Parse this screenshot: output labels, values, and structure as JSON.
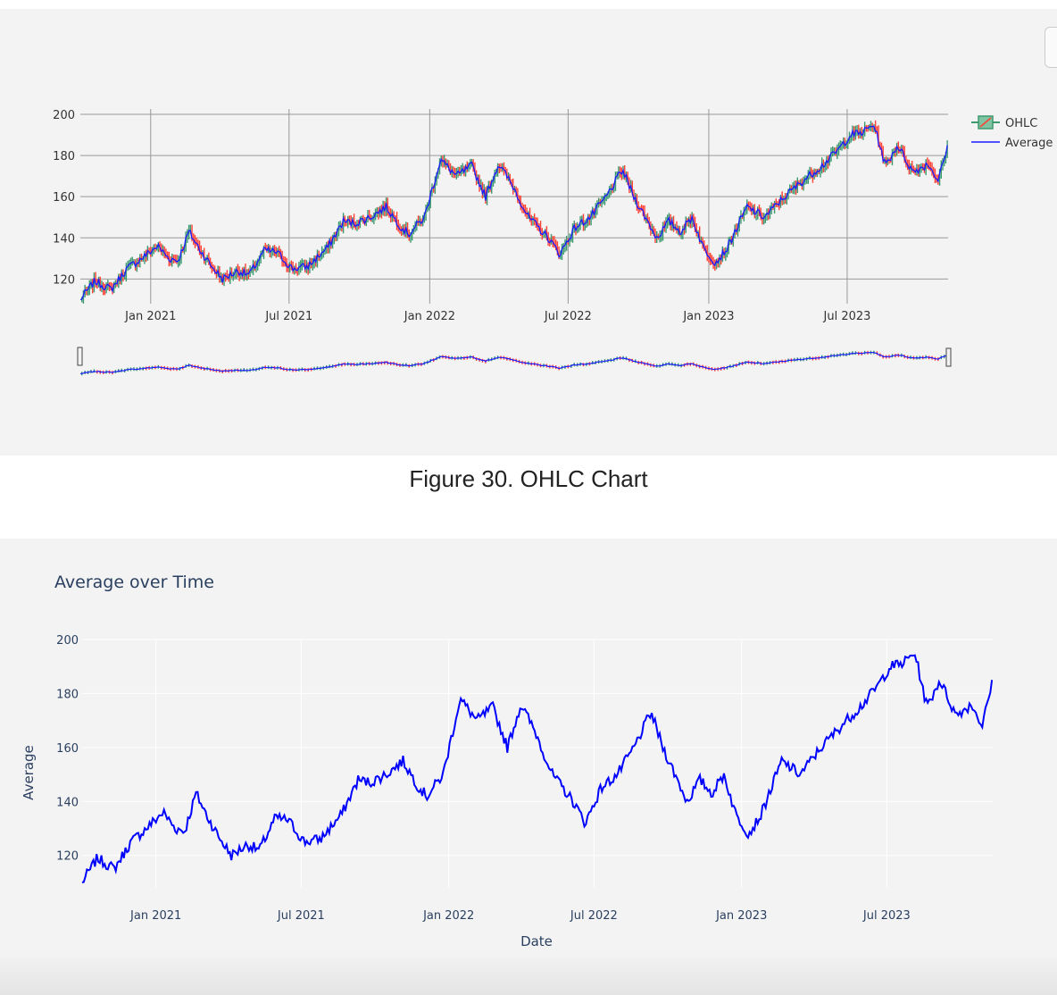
{
  "caption": "Figure 30. OHLC Chart",
  "chart_data": [
    {
      "type": "ohlc",
      "x_ticks": [
        "Jan 2021",
        "Jul 2021",
        "Jan 2022",
        "Jul 2022",
        "Jan 2023",
        "Jul 2023"
      ],
      "ylim": [
        108,
        200
      ],
      "y_ticks": [
        120,
        140,
        160,
        180,
        200
      ],
      "grid": true,
      "legend": [
        "OHLC",
        "Average"
      ],
      "legend_position": "top-right",
      "colors": {
        "increasing": "#3d9970",
        "decreasing": "#ff4136",
        "average": "#1a1aff"
      },
      "range_slider": true,
      "anchors": {
        "x": [
          "2020-10-01",
          "2020-10-20",
          "2020-11-10",
          "2020-12-01",
          "2020-12-20",
          "2021-01-10",
          "2021-01-25",
          "2021-02-06",
          "2021-02-20",
          "2021-03-05",
          "2021-03-20",
          "2021-04-05",
          "2021-04-25",
          "2021-05-10",
          "2021-05-30",
          "2021-06-15",
          "2021-07-05",
          "2021-07-25",
          "2021-08-20",
          "2021-09-10",
          "2021-09-25",
          "2021-10-15",
          "2021-11-05",
          "2021-11-25",
          "2021-12-05",
          "2021-12-25",
          "2022-01-15",
          "2022-02-05",
          "2022-02-25",
          "2022-03-15",
          "2022-04-01",
          "2022-04-20",
          "2022-05-10",
          "2022-06-05",
          "2022-06-20",
          "2022-07-10",
          "2022-07-30",
          "2022-08-20",
          "2022-09-10",
          "2022-09-25",
          "2022-10-10",
          "2022-10-25",
          "2022-11-10",
          "2022-11-25",
          "2022-12-10",
          "2022-12-25",
          "2023-01-10",
          "2023-01-25",
          "2023-02-20",
          "2023-03-15",
          "2023-04-10",
          "2023-05-05",
          "2023-06-01",
          "2023-06-20",
          "2023-07-05",
          "2023-07-20",
          "2023-08-05",
          "2023-08-20",
          "2023-09-05",
          "2023-09-25",
          "2023-10-15",
          "2023-10-28",
          "2023-11-10"
        ],
        "y": [
          110,
          119,
          115,
          125,
          130,
          136,
          130,
          129,
          143,
          135,
          127,
          120,
          124,
          122,
          134,
          133,
          125,
          126,
          135,
          148,
          147,
          150,
          155,
          145,
          142,
          150,
          178,
          170,
          175,
          160,
          176,
          165,
          150,
          140,
          132,
          145,
          150,
          160,
          173,
          160,
          150,
          140,
          148,
          143,
          150,
          135,
          128,
          135,
          155,
          150,
          160,
          168,
          176,
          183,
          190,
          191,
          195,
          175,
          185,
          172,
          176,
          168,
          185
        ]
      }
    },
    {
      "type": "line",
      "title": "Average over Time",
      "xlabel": "Date",
      "ylabel": "Average",
      "x_ticks": [
        "Jan 2021",
        "Jul 2021",
        "Jan 2022",
        "Jul 2022",
        "Jan 2023",
        "Jul 2023"
      ],
      "y_ticks": [
        120,
        140,
        160,
        180,
        200
      ],
      "ylim": [
        108,
        200
      ],
      "grid": true,
      "color": "#0000ff"
    }
  ]
}
